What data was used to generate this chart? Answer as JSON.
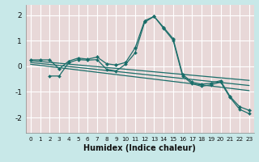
{
  "xlabel": "Humidex (Indice chaleur)",
  "x_ticks": [
    0,
    1,
    2,
    3,
    4,
    5,
    6,
    7,
    8,
    9,
    10,
    11,
    12,
    13,
    14,
    15,
    16,
    17,
    18,
    19,
    20,
    21,
    22,
    23
  ],
  "ylim": [
    -2.6,
    2.4
  ],
  "xlim": [
    -0.5,
    23.5
  ],
  "background_color": "#c8e8e8",
  "plot_bg_color": "#e8d8d8",
  "grid_color": "#ffffff",
  "line_color": "#1a6e6a",
  "curve1_x": [
    0,
    1,
    2,
    3,
    4,
    5,
    6,
    7,
    8,
    9,
    10,
    11,
    12,
    13,
    14,
    15,
    16,
    17,
    18,
    19,
    20,
    21,
    22,
    23
  ],
  "curve1_y": [
    0.25,
    0.25,
    0.25,
    -0.1,
    0.2,
    0.32,
    0.28,
    0.36,
    0.1,
    0.05,
    0.15,
    0.72,
    1.78,
    1.95,
    1.52,
    1.08,
    -0.32,
    -0.62,
    -0.7,
    -0.66,
    -0.56,
    -1.18,
    -1.58,
    -1.72
  ],
  "curve2_x": [
    2,
    3,
    4,
    5,
    6,
    7,
    8,
    9,
    10,
    11,
    12,
    13,
    14,
    15,
    16,
    17,
    18,
    19,
    20,
    21,
    22,
    23
  ],
  "curve2_y": [
    -0.38,
    -0.38,
    0.14,
    0.26,
    0.24,
    0.26,
    -0.12,
    -0.18,
    0.08,
    0.52,
    1.72,
    1.95,
    1.48,
    1.02,
    -0.38,
    -0.68,
    -0.78,
    -0.72,
    -0.62,
    -1.22,
    -1.68,
    -1.85
  ],
  "trend1_x": [
    0,
    23
  ],
  "trend1_y": [
    0.22,
    -0.55
  ],
  "trend2_x": [
    0,
    23
  ],
  "trend2_y": [
    0.15,
    -0.75
  ],
  "trend3_x": [
    0,
    23
  ],
  "trend3_y": [
    0.08,
    -0.95
  ],
  "yticks": [
    -2,
    -1,
    0,
    1,
    2
  ],
  "ytick_labels": [
    "-2",
    "-1",
    "0",
    "1",
    "2"
  ]
}
